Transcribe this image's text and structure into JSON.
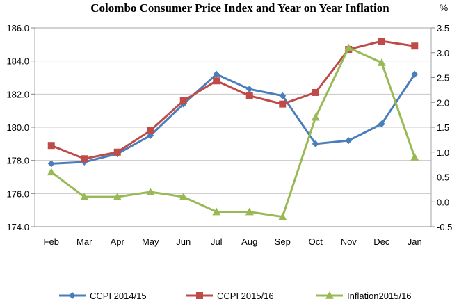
{
  "chart_data": {
    "type": "line",
    "title": "Colombo Consumer Price Index and Year on Year Inflation",
    "y2_unit_label": "%",
    "categories": [
      "Feb",
      "Mar",
      "Apr",
      "May",
      "Jun",
      "Jul",
      "Aug",
      "Sep",
      "Oct",
      "Nov",
      "Dec",
      "Jan"
    ],
    "y_left": {
      "ylim": [
        174.0,
        186.0
      ],
      "ticks": [
        174.0,
        176.0,
        178.0,
        180.0,
        182.0,
        184.0,
        186.0
      ],
      "tick_labels": [
        "174.0",
        "176.0",
        "178.0",
        "180.0",
        "182.0",
        "184.0",
        "186.0"
      ]
    },
    "y_right": {
      "ylim": [
        -0.5,
        3.5
      ],
      "ticks": [
        -0.5,
        0.0,
        0.5,
        1.0,
        1.5,
        2.0,
        2.5,
        3.0,
        3.5
      ],
      "tick_labels": [
        "-0.5",
        "0.0",
        "0.5",
        "1.0",
        "1.5",
        "2.0",
        "2.5",
        "3.0",
        "3.5"
      ]
    },
    "grid": true,
    "legend_position": "bottom",
    "series": [
      {
        "name": "CCPI 2014/15",
        "axis": "left",
        "marker": "diamond",
        "color": "#4A7EBB",
        "values": [
          177.8,
          177.9,
          178.4,
          179.5,
          181.4,
          183.2,
          182.3,
          181.9,
          179.0,
          179.2,
          180.2,
          183.2
        ]
      },
      {
        "name": "CCPI 2015/16",
        "axis": "left",
        "marker": "square",
        "color": "#BE4B48",
        "values": [
          178.9,
          178.1,
          178.5,
          179.8,
          181.6,
          182.8,
          181.9,
          181.4,
          182.1,
          184.7,
          185.2,
          184.9
        ]
      },
      {
        "name": "Inflation2015/16",
        "axis": "right",
        "marker": "triangle",
        "color": "#98B954",
        "values": [
          0.6,
          0.1,
          0.1,
          0.2,
          0.1,
          -0.2,
          -0.2,
          -0.3,
          1.7,
          3.1,
          2.8,
          0.9
        ]
      }
    ],
    "annotations": [
      {
        "type": "vertical-line",
        "between": [
          "Dec",
          "Jan"
        ]
      }
    ]
  }
}
